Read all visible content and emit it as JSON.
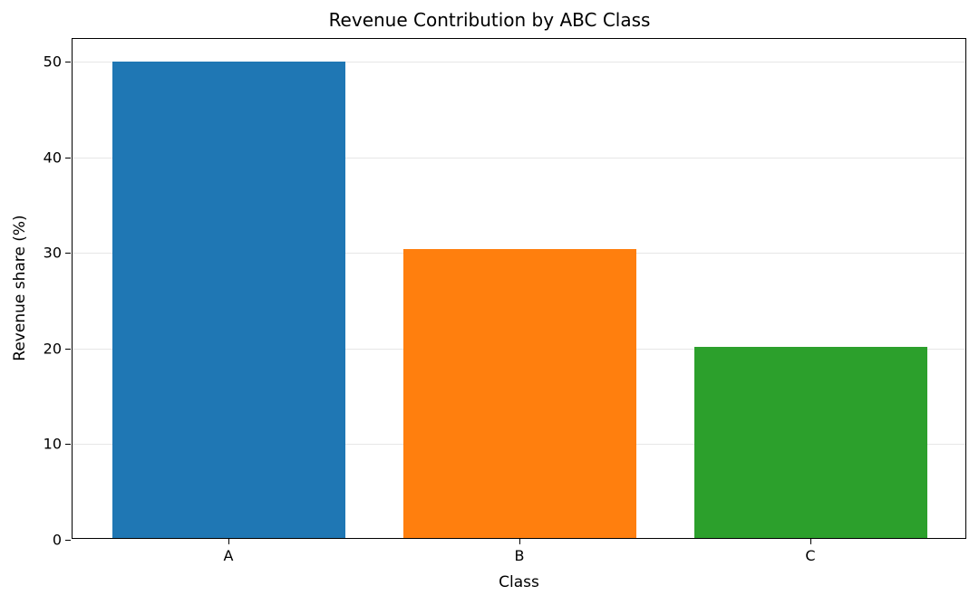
{
  "chart_data": {
    "type": "bar",
    "title": "Revenue Contribution by ABC Class",
    "xlabel": "Class",
    "ylabel": "Revenue share (%)",
    "categories": [
      "A",
      "B",
      "C"
    ],
    "values": [
      49.8,
      30.2,
      20.0
    ],
    "colors": [
      "#1f77b4",
      "#ff7f0e",
      "#2ca02c"
    ],
    "ylim": [
      0,
      52.4
    ],
    "yticks": [
      0,
      10,
      20,
      30,
      40,
      50
    ],
    "grid": {
      "axis": "y",
      "on": true
    },
    "legend": null
  }
}
